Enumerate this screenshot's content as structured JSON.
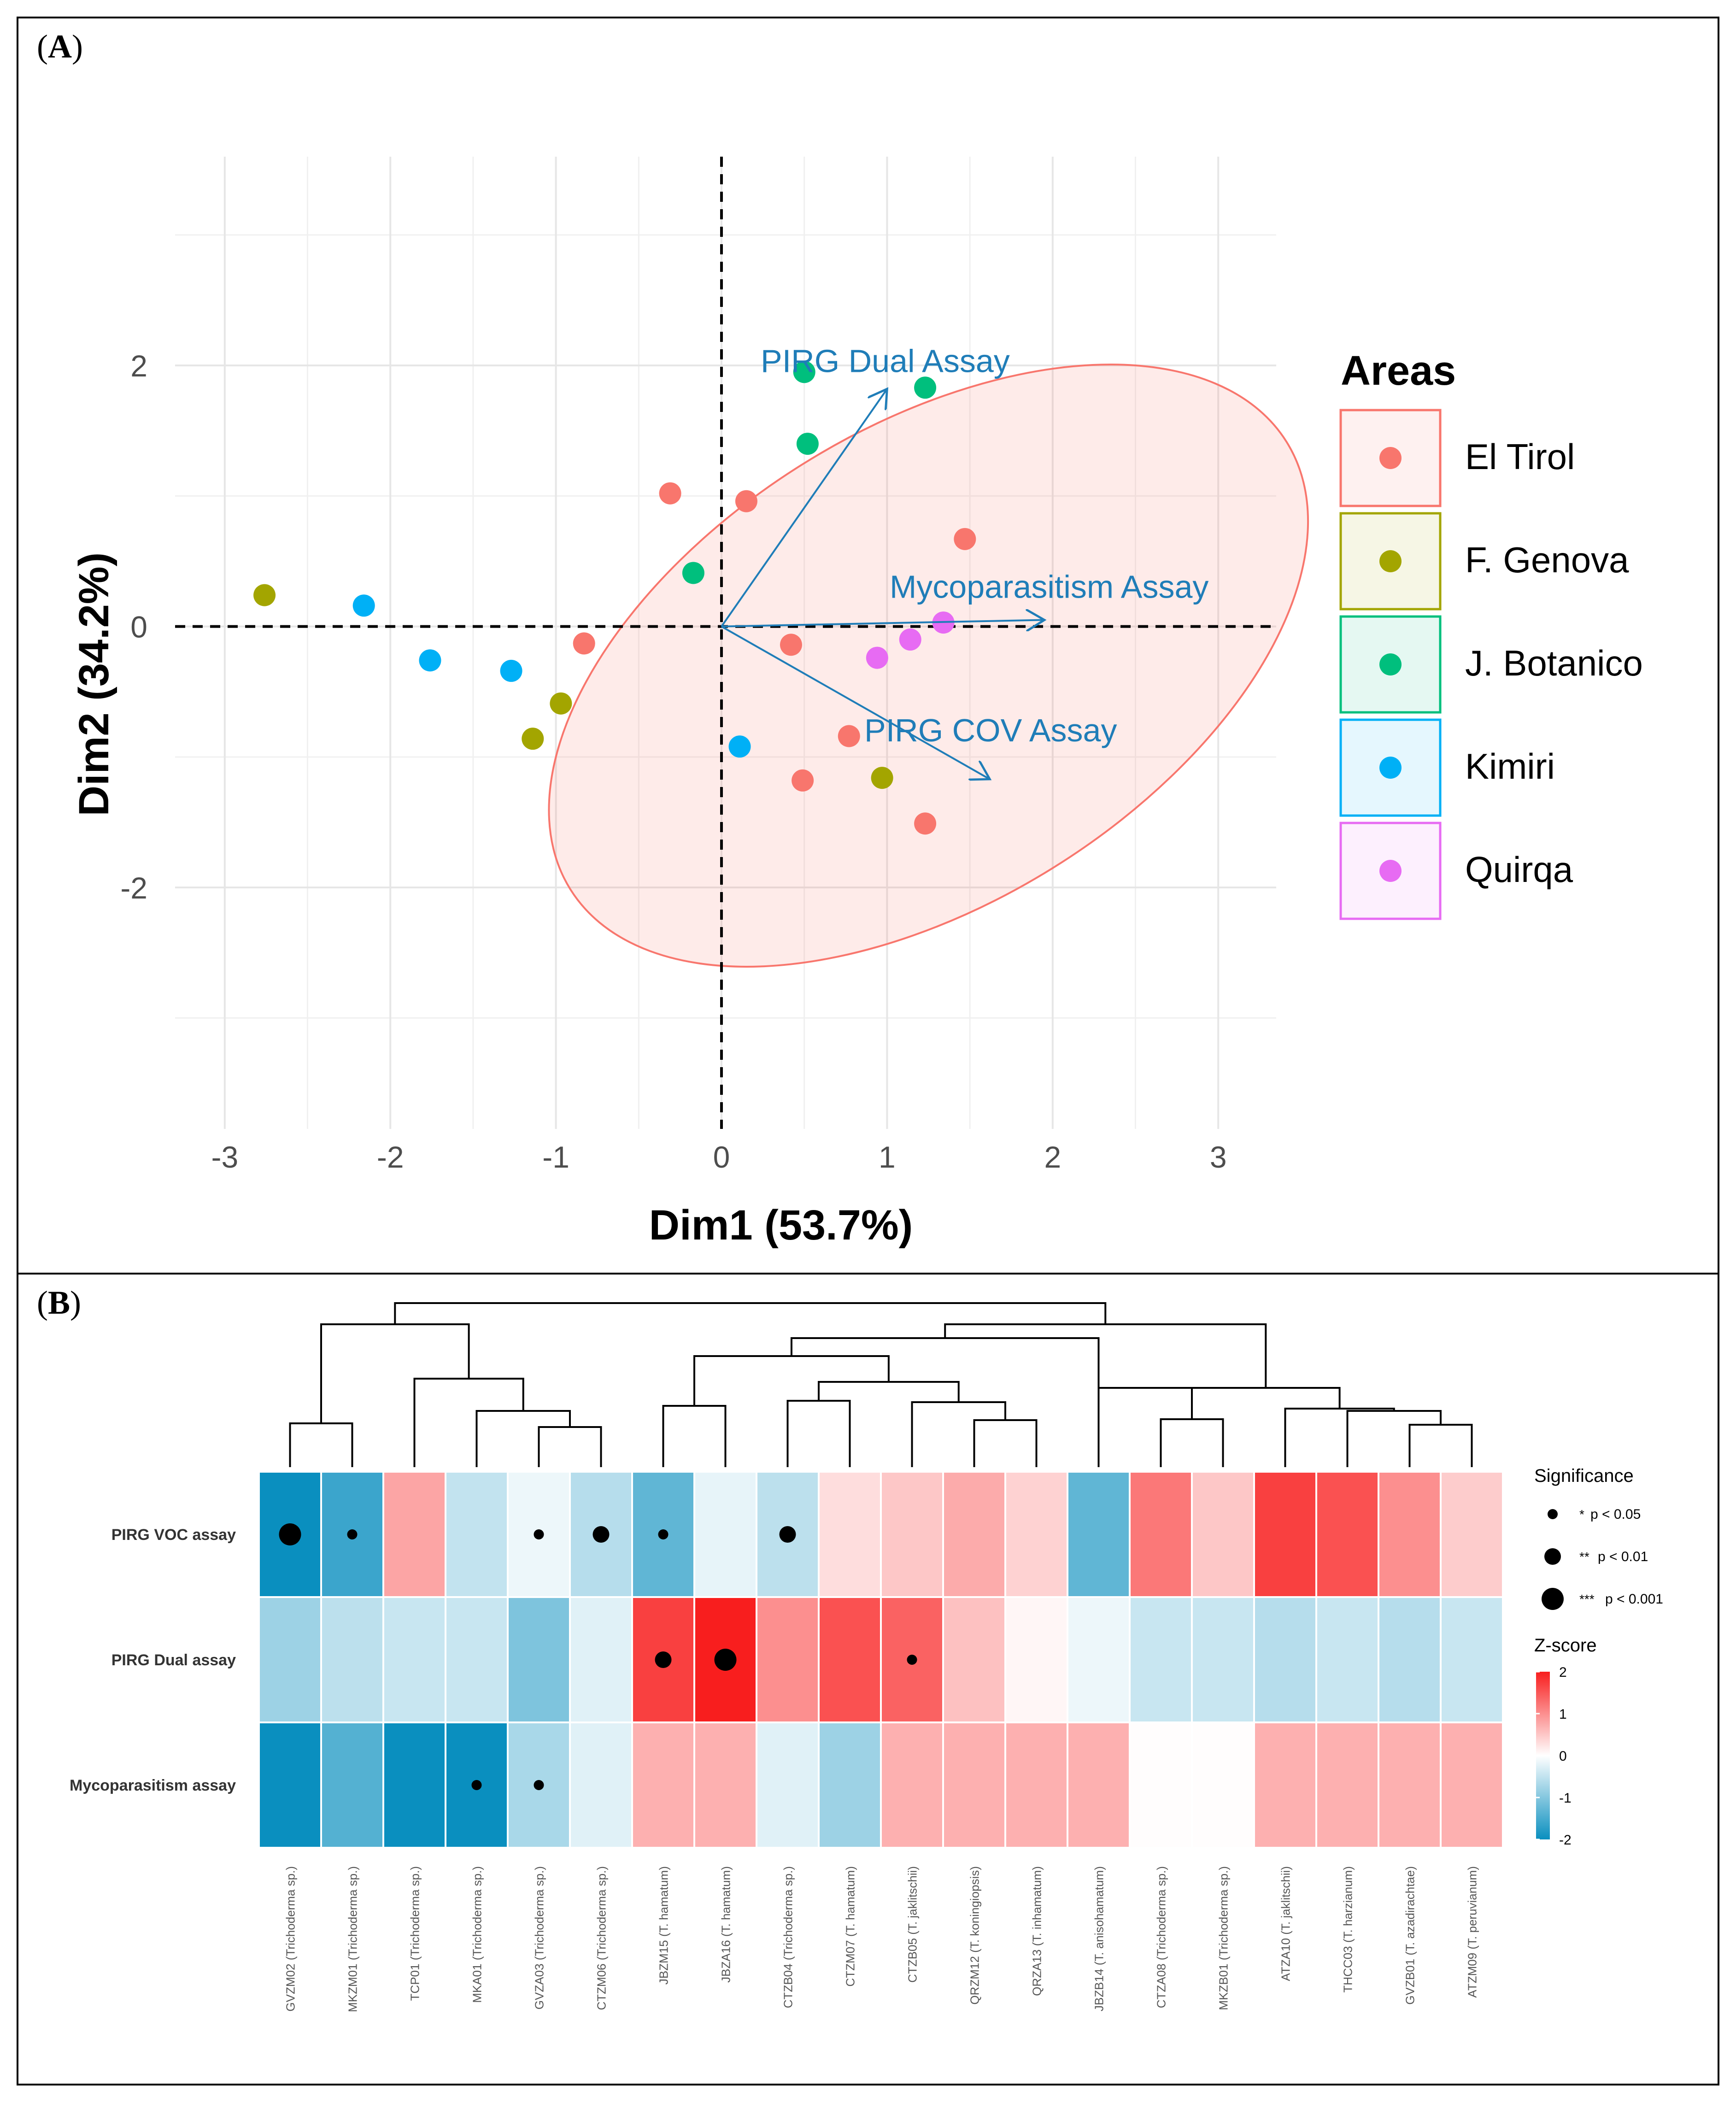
{
  "panel_a": {
    "label_open": "(",
    "label_letter": "A",
    "label_close": ")"
  },
  "panel_b": {
    "label_open": "(",
    "label_letter": "B",
    "label_close": ")"
  },
  "chart_data": [
    {
      "type": "scatter",
      "subtype": "pca-biplot",
      "xlabel": "Dim1 (53.7%)",
      "ylabel": "Dim2 (34.2%)",
      "xlim": [
        -3.3,
        3.35
      ],
      "ylim": [
        -3.85,
        3.6
      ],
      "xticks": [
        "-3",
        "-2",
        "-1",
        "0",
        "1",
        "2",
        "3"
      ],
      "yticks": [
        "-2",
        "0",
        "2"
      ],
      "legend_title": "Areas",
      "legend_position": "right",
      "groups": [
        {
          "name": "El Tirol",
          "color": "#F8766D",
          "points": [
            [
              -0.83,
              -0.13
            ],
            [
              -0.31,
              1.02
            ],
            [
              0.15,
              0.96
            ],
            [
              0.42,
              -0.14
            ],
            [
              0.77,
              -0.84
            ],
            [
              0.49,
              -1.18
            ],
            [
              1.23,
              -1.51
            ],
            [
              1.47,
              0.67
            ]
          ]
        },
        {
          "name": "F. Genova",
          "color": "#A3A500",
          "points": [
            [
              -2.76,
              0.24
            ],
            [
              -0.97,
              -0.59
            ],
            [
              -1.14,
              -0.86
            ],
            [
              0.97,
              -1.16
            ]
          ]
        },
        {
          "name": "J. Botanico",
          "color": "#00BF7D",
          "points": [
            [
              0.5,
              1.95
            ],
            [
              1.23,
              1.83
            ],
            [
              0.52,
              1.4
            ],
            [
              -0.17,
              0.41
            ]
          ]
        },
        {
          "name": "Kimiri",
          "color": "#00B0F6",
          "points": [
            [
              -2.16,
              0.16
            ],
            [
              -1.76,
              -0.26
            ],
            [
              -1.27,
              -0.34
            ],
            [
              0.11,
              -0.92
            ]
          ]
        },
        {
          "name": "Quirqa",
          "color": "#E76BF3",
          "points": [
            [
              0.94,
              -0.24
            ],
            [
              1.14,
              -0.1
            ],
            [
              1.34,
              0.03
            ]
          ]
        }
      ],
      "ellipse_group": "El Tirol",
      "vectors": [
        {
          "name": "PIRG Dual Assay",
          "x": 1.0,
          "y": 1.82
        },
        {
          "name": "Mycoparasitism Assay",
          "x": 1.95,
          "y": 0.05
        },
        {
          "name": "PIRG COV Assay",
          "x": 1.62,
          "y": -1.17
        }
      ]
    },
    {
      "type": "heatmap",
      "rows": [
        "PIRG VOC assay",
        "PIRG Dual assay",
        "Mycoparasitism assay"
      ],
      "columns": [
        "GVZM02 (Trichoderma sp.)",
        "MKZM01 (Trichoderma sp.)",
        "TCP01 (Trichoderma sp.)",
        "MKA01 (Trichoderma sp.)",
        "GVZA03 (Trichoderma sp.)",
        "CTZM06 (Trichoderma sp.)",
        "JBZM15 (T. hamatum)",
        "JBZA16 (T. hamatum)",
        "CTZB04 (Trichoderma sp.)",
        "CTZM07 (T. hamatum)",
        "CTZB05 (T. jaklitschii)",
        "QRZM12 (T. koningiopsis)",
        "QRZA13 (T. inhamatum)",
        "JBZB14 (T. anisohamatum)",
        "CTZA08 (Trichoderma sp.)",
        "MKZB01 (Trichoderma sp.)",
        "ATZA10 (T. jaklitschii)",
        "THCC03 (T. harzianum)",
        "GVZB01 (T. azadirachtae)",
        "ATZM09 (T. peruvianum)"
      ],
      "zscores": [
        [
          -2.0,
          -1.6,
          0.8,
          -0.5,
          -0.15,
          -0.6,
          -1.3,
          -0.2,
          -0.55,
          0.3,
          0.5,
          0.75,
          0.4,
          -1.3,
          1.2,
          0.5,
          1.7,
          1.55,
          1.0,
          0.45
        ],
        [
          -0.8,
          -0.55,
          -0.45,
          -0.45,
          -1.05,
          -0.25,
          1.7,
          2.0,
          1.0,
          1.55,
          1.4,
          0.55,
          0.08,
          -0.15,
          -0.45,
          -0.45,
          -0.6,
          -0.45,
          -0.6,
          -0.45
        ],
        [
          -2.0,
          -1.4,
          -2.0,
          -2.0,
          -0.7,
          -0.25,
          0.7,
          0.7,
          -0.25,
          -0.8,
          0.7,
          0.7,
          0.7,
          0.7,
          0.02,
          0.02,
          0.7,
          0.7,
          0.7,
          0.7
        ]
      ],
      "significance": [
        [
          3,
          1,
          0,
          0,
          1,
          2,
          1,
          0,
          2,
          0,
          0,
          0,
          0,
          0,
          0,
          0,
          0,
          0,
          0,
          0
        ],
        [
          0,
          0,
          0,
          0,
          0,
          0,
          2,
          3,
          0,
          0,
          1,
          0,
          0,
          0,
          0,
          0,
          0,
          0,
          0,
          0
        ],
        [
          0,
          0,
          0,
          1,
          1,
          0,
          0,
          0,
          0,
          0,
          0,
          0,
          0,
          0,
          0,
          0,
          0,
          0,
          0,
          0
        ]
      ],
      "significance_title": "Significance",
      "significance_legend": [
        {
          "stars": "*",
          "text": "p < 0.05"
        },
        {
          "stars": "**",
          "text": "p < 0.01"
        },
        {
          "stars": "***",
          "text": "p < 0.001"
        }
      ],
      "colorbar_title": "Z-score",
      "colorbar_range": [
        -2,
        2
      ],
      "colorbar_ticks": [
        "2",
        "1",
        "0",
        "-1",
        "-2"
      ],
      "colors": {
        "low": "#0A8FBF",
        "mid": "#FFFFFF",
        "high": "#F81E1E"
      }
    }
  ]
}
